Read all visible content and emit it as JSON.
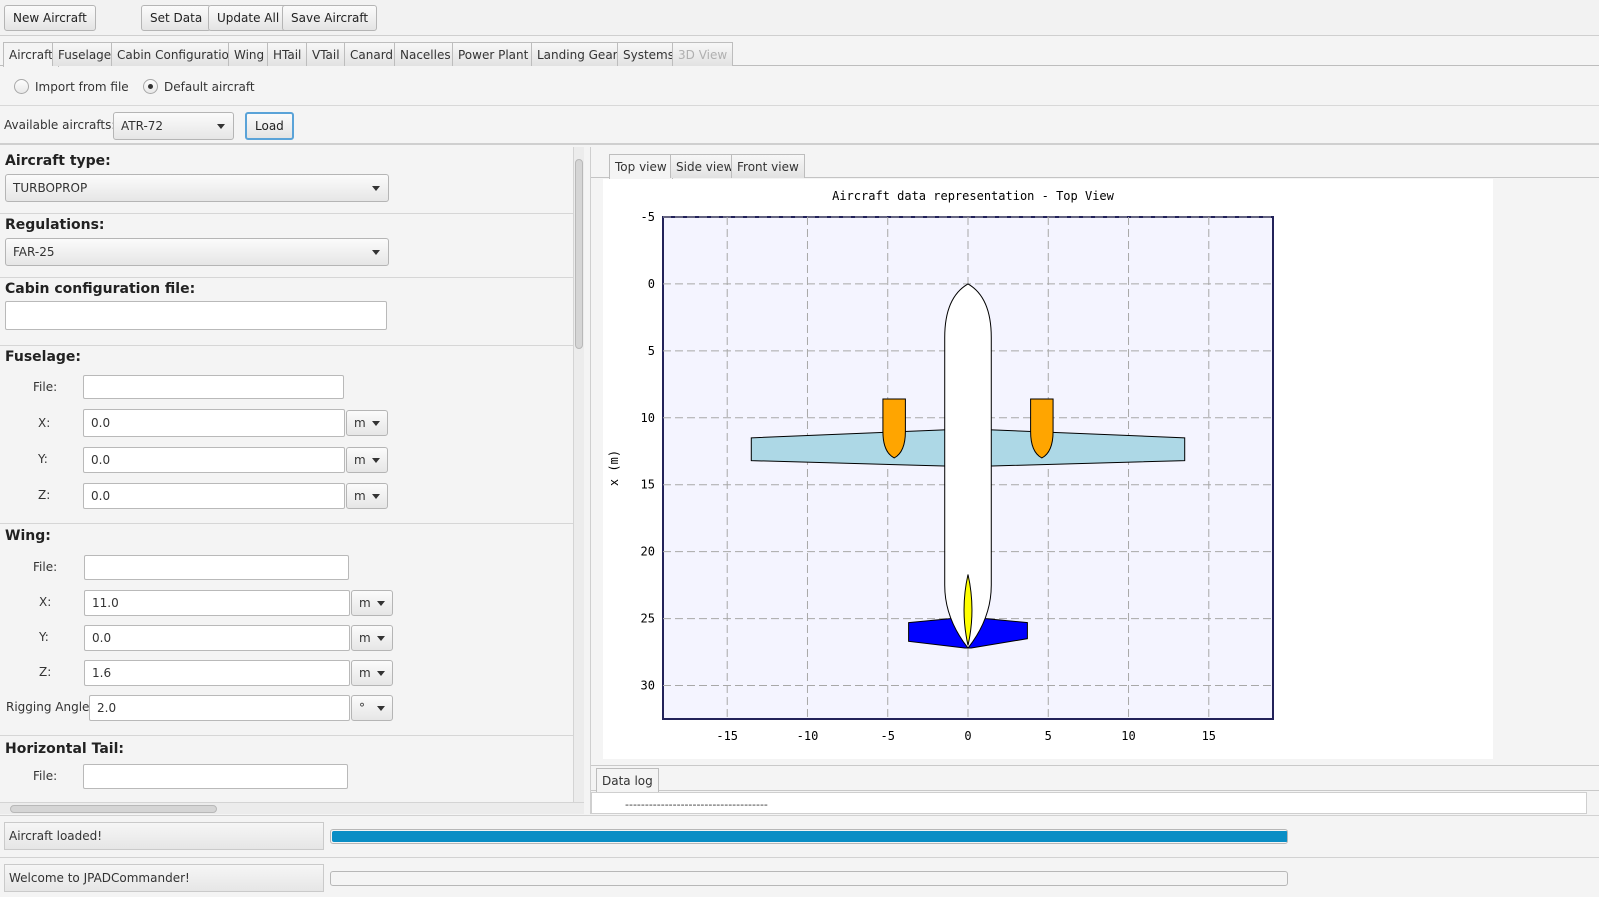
{
  "toolbar": {
    "new_aircraft": "New Aircraft",
    "set_data": "Set  Data",
    "update_all": "Update All",
    "save_aircraft": "Save Aircraft"
  },
  "tabs": [
    "Aircraft",
    "Fuselage",
    "Cabin Configuration",
    "Wing",
    "HTail",
    "VTail",
    "Canard",
    "Nacelles",
    "Power Plant",
    "Landing Gears",
    "Systems",
    "3D View"
  ],
  "source": {
    "import_label": "Import from file",
    "default_label": "Default aircraft",
    "selected": "Default aircraft"
  },
  "available": {
    "label": "Available aircrafts:",
    "value": "ATR-72",
    "load_button": "Load"
  },
  "form": {
    "aircraft_type": {
      "label": "Aircraft type:",
      "value": "TURBOPROP"
    },
    "regulations": {
      "label": "Regulations:",
      "value": "FAR-25"
    },
    "cabin_file": {
      "label": "Cabin configuration file:",
      "value": ""
    },
    "fuselage": {
      "title": "Fuselage:",
      "file_label": "File:",
      "file": "",
      "x_label": "X:",
      "x": "0.0",
      "x_unit": "m",
      "y_label": "Y:",
      "y": "0.0",
      "y_unit": "m",
      "z_label": "Z:",
      "z": "0.0",
      "z_unit": "m"
    },
    "wing": {
      "title": "Wing:",
      "file_label": "File:",
      "file": "",
      "x_label": "X:",
      "x": "11.0",
      "x_unit": "m",
      "y_label": "Y:",
      "y": "0.0",
      "y_unit": "m",
      "z_label": "Z:",
      "z": "1.6",
      "z_unit": "m",
      "rig_label": "Rigging Angle:",
      "rig": "2.0",
      "rig_unit": "°"
    },
    "htail": {
      "title": "Horizontal Tail:",
      "file_label": "File:",
      "file": ""
    }
  },
  "views": {
    "tabs": [
      "Top view",
      "Side view",
      "Front view"
    ],
    "active": "Top view"
  },
  "chart_data": {
    "type": "scatter",
    "title": "Aircraft data representation - Top View",
    "ylabel": "x (m)",
    "xlabel": "",
    "xlim": [
      -19,
      19
    ],
    "ylim": [
      -5,
      32.5
    ],
    "xticks": [
      -15,
      -10,
      -5,
      0,
      5,
      10,
      15
    ],
    "yticks": [
      -5,
      0,
      5,
      10,
      15,
      20,
      25,
      30
    ],
    "y_inverted": true,
    "grid": true,
    "colors": {
      "wing": "#add8e6",
      "nacelle": "#ffa500",
      "htail": "#0000ff",
      "vtail": "#ffff00",
      "fuselage": "#ffffff",
      "plot_bg": "#f4f4ff"
    },
    "components": {
      "fuselage": {
        "length": 27.2,
        "max_width": 2.9
      },
      "wing": [
        [
          -13.5,
          11.5
        ],
        [
          -1.5,
          10.9
        ],
        [
          1.5,
          10.9
        ],
        [
          13.5,
          11.5
        ],
        [
          13.5,
          13.2
        ],
        [
          1.5,
          13.6
        ],
        [
          -1.5,
          13.6
        ],
        [
          -13.5,
          13.2
        ]
      ],
      "nacelles": [
        {
          "y": -4.6,
          "x_start": 8.6,
          "x_end": 13.0,
          "width": 1.4
        },
        {
          "y": 4.6,
          "x_start": 8.6,
          "x_end": 13.0,
          "width": 1.4
        }
      ],
      "htail": [
        [
          -3.7,
          25.3
        ],
        [
          -0.2,
          24.9
        ],
        [
          0.2,
          24.9
        ],
        [
          3.7,
          25.3
        ],
        [
          3.7,
          26.5
        ],
        [
          0.2,
          27.2
        ],
        [
          -0.2,
          27.2
        ],
        [
          -3.7,
          26.7
        ]
      ],
      "vtail": {
        "x_start": 21.7,
        "x_end": 27.0,
        "width": 0.55
      }
    }
  },
  "datalog": {
    "tab": "Data log",
    "text": "------------------------------------"
  },
  "status": {
    "message1": "Aircraft loaded!",
    "progress1": 1.0,
    "message2": "Welcome to JPADCommander!",
    "progress2": 0.0
  }
}
